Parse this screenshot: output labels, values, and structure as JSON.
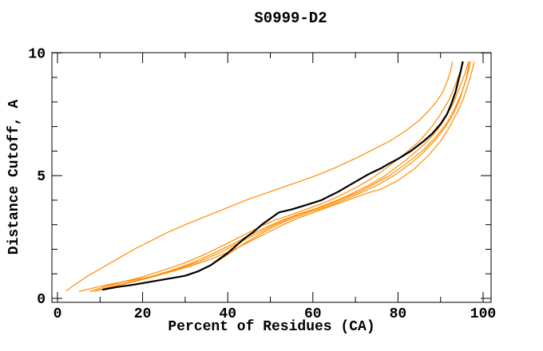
{
  "window": {
    "background": "#ffffff"
  },
  "chart_data": {
    "type": "line",
    "title": "S0999-D2",
    "xlabel": "Percent of Residues (CA)",
    "ylabel": "Distance Cutoff, A",
    "xlim": [
      0,
      100
    ],
    "ylim": [
      0,
      10
    ],
    "x_major_ticks": [
      0,
      20,
      40,
      60,
      80,
      100
    ],
    "x_minor_ticks": [
      10,
      30,
      50,
      70,
      90
    ],
    "y_major_ticks": [
      0,
      5,
      10
    ],
    "y_minor_ticks": [
      1,
      2,
      3,
      4,
      6,
      7,
      8,
      9
    ],
    "grid": false,
    "legend_position": "none",
    "frame": true,
    "colors": {
      "model_line": "#000000",
      "prediction_line": "#ff8c00",
      "frame": "#000000",
      "text": "#000000",
      "background": "#ffffff"
    },
    "series": [
      {
        "name": "model-black",
        "role": "model",
        "color": "#000000",
        "stroke_width": 2.2,
        "points": [
          [
            10.5,
            0.35
          ],
          [
            14,
            0.46
          ],
          [
            18,
            0.56
          ],
          [
            22,
            0.68
          ],
          [
            26,
            0.8
          ],
          [
            30,
            0.92
          ],
          [
            33,
            1.1
          ],
          [
            36,
            1.35
          ],
          [
            38,
            1.6
          ],
          [
            40,
            1.85
          ],
          [
            42,
            2.15
          ],
          [
            44,
            2.45
          ],
          [
            46,
            2.7
          ],
          [
            48,
            3.0
          ],
          [
            50,
            3.25
          ],
          [
            52,
            3.5
          ],
          [
            55,
            3.62
          ],
          [
            58,
            3.78
          ],
          [
            62,
            4.0
          ],
          [
            66,
            4.35
          ],
          [
            70,
            4.75
          ],
          [
            73,
            5.05
          ],
          [
            76,
            5.3
          ],
          [
            78,
            5.5
          ],
          [
            80,
            5.68
          ],
          [
            83,
            6.0
          ],
          [
            86,
            6.4
          ],
          [
            88,
            6.7
          ],
          [
            90,
            7.1
          ],
          [
            91.5,
            7.5
          ],
          [
            92.5,
            7.9
          ],
          [
            93.5,
            8.4
          ],
          [
            94.3,
            8.95
          ],
          [
            94.8,
            9.3
          ],
          [
            95.2,
            9.65
          ]
        ]
      },
      {
        "name": "prediction-1",
        "role": "prediction",
        "color": "#ff8c00",
        "stroke_width": 1.2,
        "points": [
          [
            2,
            0.3
          ],
          [
            4,
            0.55
          ],
          [
            7,
            0.9
          ],
          [
            10,
            1.2
          ],
          [
            14,
            1.6
          ],
          [
            18,
            2.0
          ],
          [
            22,
            2.35
          ],
          [
            26,
            2.7
          ],
          [
            30,
            3.0
          ],
          [
            35,
            3.35
          ],
          [
            40,
            3.7
          ],
          [
            45,
            4.05
          ],
          [
            50,
            4.35
          ],
          [
            55,
            4.65
          ],
          [
            60,
            4.95
          ],
          [
            65,
            5.3
          ],
          [
            70,
            5.7
          ],
          [
            74,
            6.05
          ],
          [
            78,
            6.4
          ],
          [
            82,
            6.85
          ],
          [
            85,
            7.25
          ],
          [
            87,
            7.6
          ],
          [
            89,
            8.0
          ],
          [
            90.5,
            8.4
          ],
          [
            91.7,
            8.9
          ],
          [
            92.4,
            9.3
          ],
          [
            92.8,
            9.65
          ]
        ]
      },
      {
        "name": "prediction-2",
        "role": "prediction",
        "color": "#ff8c00",
        "stroke_width": 1.2,
        "points": [
          [
            7.5,
            0.28
          ],
          [
            12,
            0.52
          ],
          [
            16,
            0.7
          ],
          [
            20,
            0.88
          ],
          [
            25,
            1.15
          ],
          [
            30,
            1.45
          ],
          [
            35,
            1.82
          ],
          [
            40,
            2.25
          ],
          [
            44,
            2.6
          ],
          [
            48,
            2.95
          ],
          [
            51,
            3.18
          ],
          [
            54,
            3.35
          ],
          [
            58,
            3.6
          ],
          [
            62,
            3.85
          ],
          [
            66,
            4.15
          ],
          [
            70,
            4.5
          ],
          [
            74,
            4.9
          ],
          [
            78,
            5.4
          ],
          [
            82,
            5.95
          ],
          [
            85,
            6.4
          ],
          [
            88,
            7.0
          ],
          [
            90,
            7.5
          ],
          [
            92,
            8.1
          ],
          [
            93.5,
            8.7
          ],
          [
            94.7,
            9.3
          ],
          [
            95.5,
            9.65
          ]
        ]
      },
      {
        "name": "prediction-3",
        "role": "prediction",
        "color": "#ff8c00",
        "stroke_width": 1.2,
        "points": [
          [
            8.5,
            0.28
          ],
          [
            13,
            0.5
          ],
          [
            17,
            0.66
          ],
          [
            21,
            0.84
          ],
          [
            26,
            1.1
          ],
          [
            31,
            1.4
          ],
          [
            36,
            1.78
          ],
          [
            41,
            2.2
          ],
          [
            45,
            2.55
          ],
          [
            49,
            2.9
          ],
          [
            53,
            3.2
          ],
          [
            57,
            3.45
          ],
          [
            61,
            3.68
          ],
          [
            65,
            3.95
          ],
          [
            69,
            4.25
          ],
          [
            73,
            4.6
          ],
          [
            77,
            5.0
          ],
          [
            82,
            5.65
          ],
          [
            86,
            6.25
          ],
          [
            89,
            6.8
          ],
          [
            91,
            7.3
          ],
          [
            93,
            7.95
          ],
          [
            94.5,
            8.6
          ],
          [
            95.8,
            9.2
          ],
          [
            96.6,
            9.65
          ]
        ]
      },
      {
        "name": "prediction-4",
        "role": "prediction",
        "color": "#ff8c00",
        "stroke_width": 1.2,
        "points": [
          [
            9,
            0.3
          ],
          [
            14,
            0.52
          ],
          [
            18,
            0.68
          ],
          [
            23,
            0.9
          ],
          [
            28,
            1.18
          ],
          [
            33,
            1.48
          ],
          [
            38,
            1.85
          ],
          [
            43,
            2.3
          ],
          [
            47,
            2.65
          ],
          [
            51,
            3.0
          ],
          [
            55,
            3.3
          ],
          [
            59,
            3.55
          ],
          [
            63,
            3.78
          ],
          [
            67,
            4.05
          ],
          [
            71,
            4.35
          ],
          [
            75,
            4.72
          ],
          [
            78,
            5.0
          ],
          [
            82,
            5.5
          ],
          [
            86,
            6.05
          ],
          [
            89,
            6.6
          ],
          [
            91.5,
            7.15
          ],
          [
            93.5,
            7.8
          ],
          [
            95,
            8.4
          ],
          [
            96.3,
            9.1
          ],
          [
            97.1,
            9.65
          ]
        ]
      },
      {
        "name": "prediction-5",
        "role": "prediction",
        "color": "#ff8c00",
        "stroke_width": 1.2,
        "points": [
          [
            5,
            0.28
          ],
          [
            9,
            0.45
          ],
          [
            13,
            0.6
          ],
          [
            17,
            0.72
          ],
          [
            21,
            0.85
          ],
          [
            26,
            1.05
          ],
          [
            31,
            1.3
          ],
          [
            36,
            1.6
          ],
          [
            41,
            1.95
          ],
          [
            45,
            2.3
          ],
          [
            49,
            2.65
          ],
          [
            53,
            3.0
          ],
          [
            57,
            3.3
          ],
          [
            61,
            3.55
          ],
          [
            65,
            3.8
          ],
          [
            69,
            4.05
          ],
          [
            73,
            4.3
          ],
          [
            76,
            4.45
          ],
          [
            80,
            4.8
          ],
          [
            84,
            5.3
          ],
          [
            87,
            5.8
          ],
          [
            90,
            6.4
          ],
          [
            92,
            6.95
          ],
          [
            94,
            7.6
          ],
          [
            95.5,
            8.2
          ],
          [
            96.8,
            8.9
          ],
          [
            97.6,
            9.4
          ],
          [
            97.9,
            9.65
          ]
        ]
      },
      {
        "name": "prediction-6",
        "role": "prediction",
        "color": "#ff8c00",
        "stroke_width": 1.2,
        "points": [
          [
            11,
            0.35
          ],
          [
            15,
            0.48
          ],
          [
            19,
            0.58
          ],
          [
            23,
            0.7
          ],
          [
            27,
            0.82
          ],
          [
            31,
            0.97
          ],
          [
            35,
            1.25
          ],
          [
            38,
            1.55
          ],
          [
            41,
            1.9
          ],
          [
            44,
            2.25
          ],
          [
            47,
            2.55
          ],
          [
            50,
            2.85
          ],
          [
            53,
            3.1
          ],
          [
            56,
            3.3
          ],
          [
            59,
            3.5
          ],
          [
            63,
            3.72
          ],
          [
            67,
            3.98
          ],
          [
            71,
            4.28
          ],
          [
            75,
            4.6
          ],
          [
            79,
            5.0
          ],
          [
            83,
            5.5
          ],
          [
            86,
            5.95
          ],
          [
            89,
            6.5
          ],
          [
            91,
            6.95
          ],
          [
            93,
            7.5
          ],
          [
            94.5,
            8.1
          ],
          [
            95.8,
            8.8
          ],
          [
            96.4,
            9.3
          ],
          [
            96.7,
            9.65
          ]
        ]
      }
    ]
  }
}
